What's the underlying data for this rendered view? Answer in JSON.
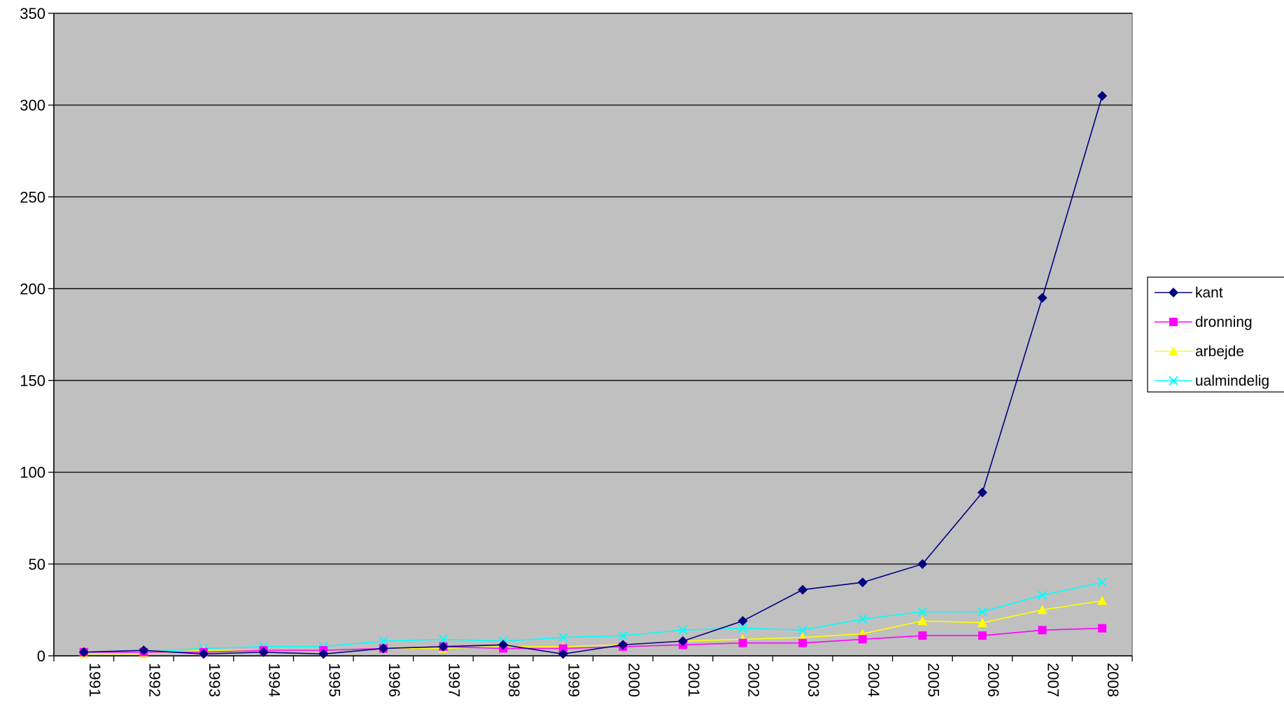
{
  "chart_data": {
    "type": "line",
    "title": "",
    "xlabel": "",
    "ylabel": "",
    "categories": [
      "1991",
      "1992",
      "1993",
      "1994",
      "1995",
      "1996",
      "1997",
      "1998",
      "1999",
      "2000",
      "2001",
      "2002",
      "2003",
      "2004",
      "2005",
      "2006",
      "2007",
      "2008"
    ],
    "ylim": [
      0,
      350
    ],
    "yticks": [
      "0",
      "50",
      "100",
      "150",
      "200",
      "250",
      "300",
      "350"
    ],
    "grid": "horizontal",
    "legend_position": "right",
    "plot_background": "#c0c0c0",
    "series": [
      {
        "name": "kant",
        "color": "#000080",
        "marker": "diamond",
        "values": [
          2,
          3,
          1,
          2,
          1,
          4,
          5,
          6,
          1,
          6,
          8,
          19,
          36,
          40,
          50,
          89,
          195,
          305
        ]
      },
      {
        "name": "dronning",
        "color": "#ff00ff",
        "marker": "square",
        "values": [
          2,
          2,
          2,
          3,
          3,
          4,
          5,
          4,
          4,
          5,
          6,
          7,
          7,
          9,
          11,
          11,
          14,
          15
        ]
      },
      {
        "name": "arbejde",
        "color": "#ffff00",
        "marker": "triangle",
        "values": [
          1,
          1,
          3,
          3,
          3,
          4,
          4,
          5,
          5,
          6,
          8,
          9,
          10,
          12,
          19,
          18,
          25,
          30
        ]
      },
      {
        "name": "ualmindelig",
        "color": "#00ffff",
        "marker": "x",
        "values": [
          2,
          2,
          4,
          5,
          5,
          8,
          9,
          8,
          10,
          11,
          14,
          15,
          14,
          20,
          24,
          24,
          33,
          40
        ]
      }
    ]
  }
}
